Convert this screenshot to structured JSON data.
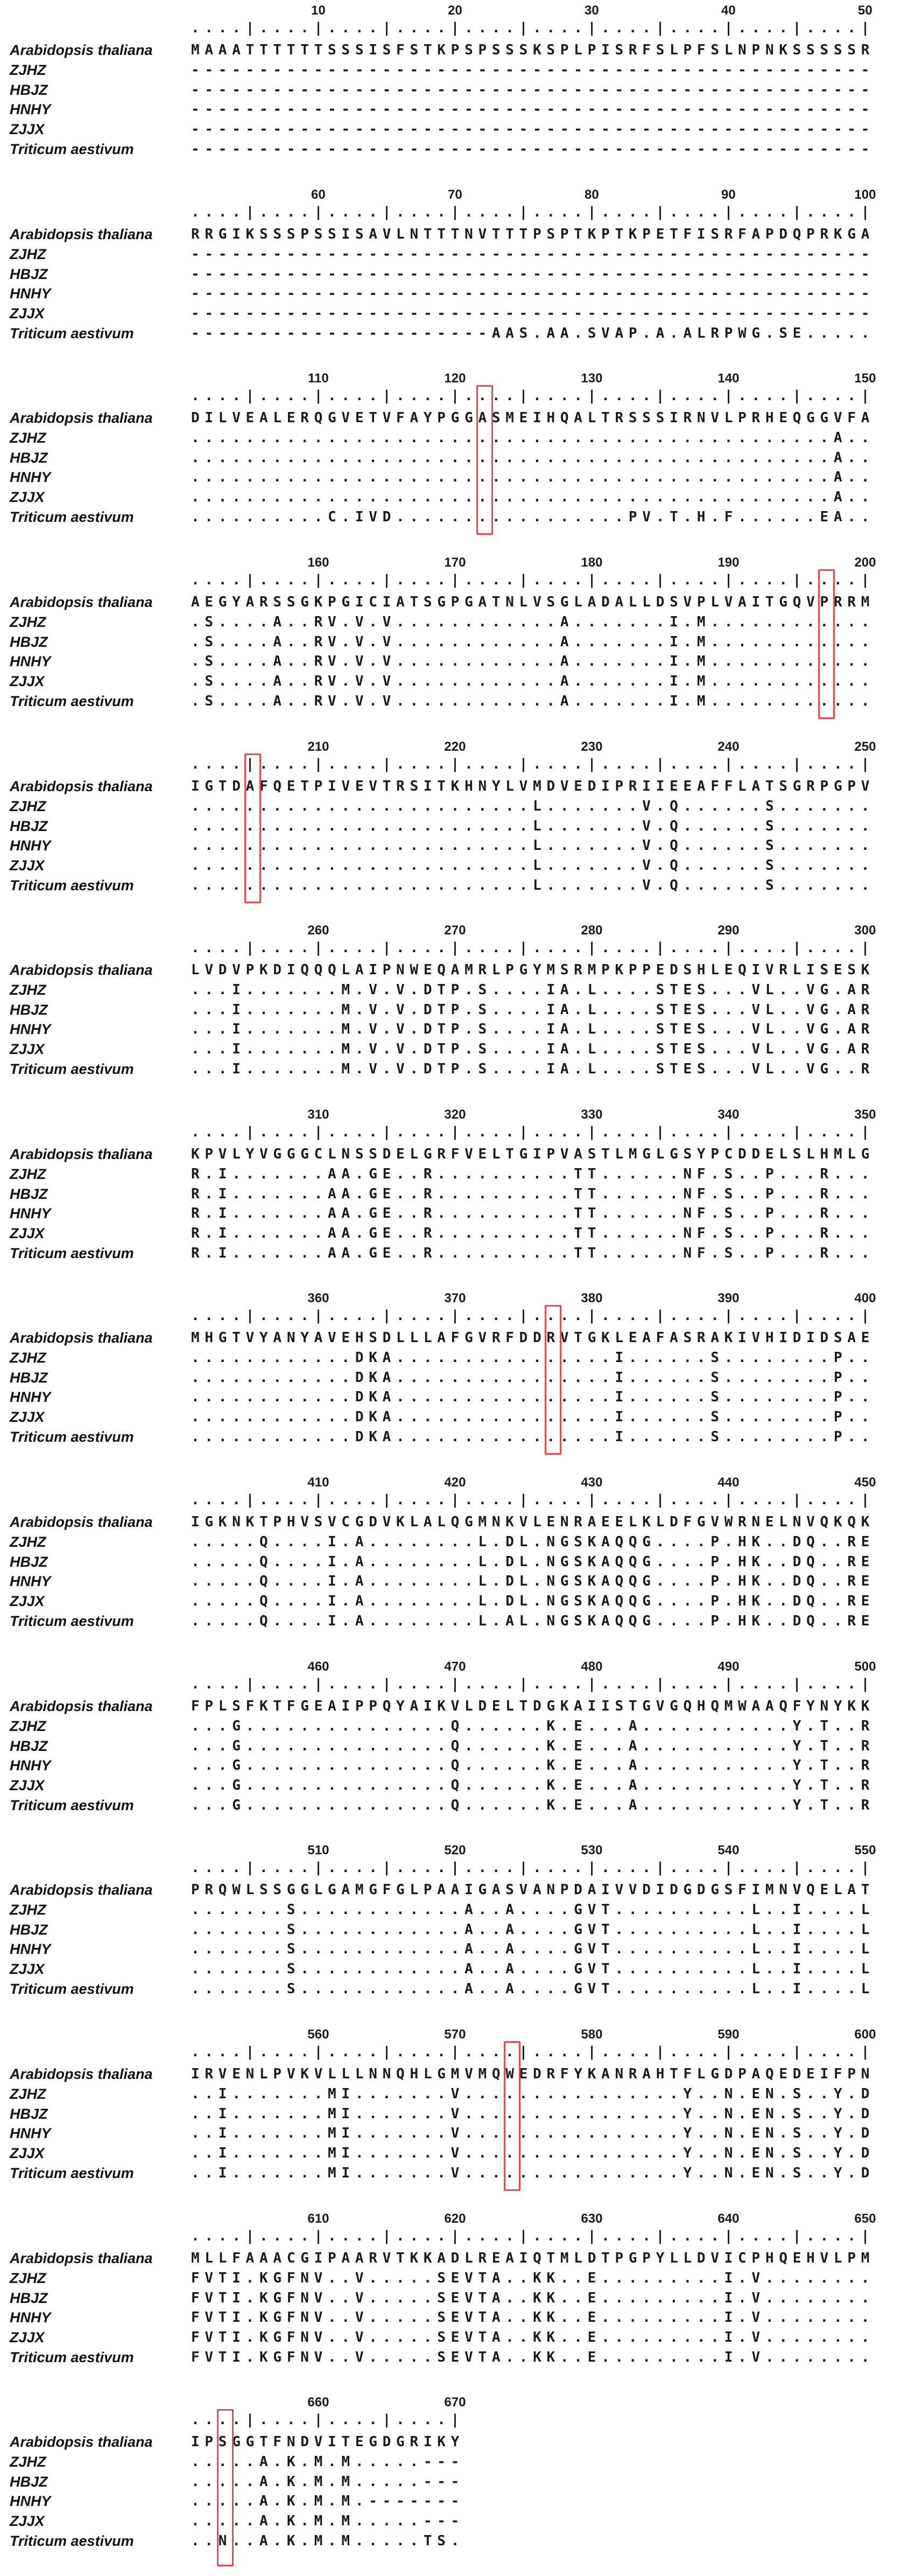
{
  "figure_title": "Multiple sequence alignment of deduced amino acid sequences",
  "colors": {
    "background": "#ffffff",
    "text": "#1a1a1a",
    "highlight_box": "#e9484e"
  },
  "chart_data": {
    "type": "table",
    "title": "Multiple sequence alignment (positions 1-670)",
    "legend_position": "left",
    "grid": false,
    "position_range": [
      1,
      670
    ],
    "highlighted_positions": [
      122,
      197,
      205,
      377,
      574,
      653
    ],
    "row_labels": [
      "Arabidopsis thaliana",
      "ZJHZ",
      "HBJZ",
      "HNHY",
      "ZJJX",
      "Triticum aestivum"
    ],
    "ruler_50": "....|....|....|....|....|....|....|....|....|....|",
    "ruler_20": "....|....|....|....|",
    "blocks": [
      {
        "start": 1,
        "cols": 50,
        "box_col": null,
        "ticks": [
          {
            "label": "10",
            "col": 10
          },
          {
            "label": "20",
            "col": 20
          },
          {
            "label": "30",
            "col": 30
          },
          {
            "label": "40",
            "col": 40
          },
          {
            "label": "50",
            "col": 50
          }
        ],
        "rows": [
          "MAAATTTTTTSSSISFSTKPSPSSSKSPLPISRFSLPFSLNPNKSSSSSR",
          "--------------------------------------------------",
          "--------------------------------------------------",
          "--------------------------------------------------",
          "--------------------------------------------------",
          "--------------------------------------------------"
        ]
      },
      {
        "start": 51,
        "cols": 50,
        "box_col": null,
        "ticks": [
          {
            "label": "60",
            "col": 10
          },
          {
            "label": "70",
            "col": 20
          },
          {
            "label": "80",
            "col": 30
          },
          {
            "label": "90",
            "col": 40
          },
          {
            "label": "100",
            "col": 50
          }
        ],
        "rows": [
          "RRGIKSSSPSSISAVLNTTTNVTTTPSPTKPTKPETFISRFAPDQPRKGA",
          "--------------------------------------------------",
          "--------------------------------------------------",
          "--------------------------------------------------",
          "--------------------------------------------------",
          "----------------------AAS.AA.SVAP.A.ALRPWG.SE....."
        ]
      },
      {
        "start": 101,
        "cols": 50,
        "box_col": 22,
        "ticks": [
          {
            "label": "110",
            "col": 10
          },
          {
            "label": "120",
            "col": 20
          },
          {
            "label": "130",
            "col": 30
          },
          {
            "label": "140",
            "col": 40
          },
          {
            "label": "150",
            "col": 50
          }
        ],
        "rows": [
          "DILVEALERQGVETVFAYPGGASMEIHQALTRSSSIRNVLPRHEQGGVFA",
          "...............................................A..",
          "...............................................A..",
          "...............................................A..",
          "...............................................A..",
          "..........C.IVD.................PV.T.H.F......EA.."
        ]
      },
      {
        "start": 151,
        "cols": 50,
        "box_col": 47,
        "ticks": [
          {
            "label": "160",
            "col": 10
          },
          {
            "label": "170",
            "col": 20
          },
          {
            "label": "180",
            "col": 30
          },
          {
            "label": "190",
            "col": 40
          },
          {
            "label": "200",
            "col": 50
          }
        ],
        "rows": [
          "AEGYARSSGKPGICIATSGPGATNLVSGLADALLDSVPLVAITGQVPRRM",
          ".S....A..RV.V.V............A.......I.M............",
          ".S....A..RV.V.V............A.......I.M............",
          ".S....A..RV.V.V............A.......I.M............",
          ".S....A..RV.V.V............A.......I.M............",
          ".S....A..RV.V.V............A.......I.M............"
        ]
      },
      {
        "start": 201,
        "cols": 50,
        "box_col": 5,
        "ticks": [
          {
            "label": "210",
            "col": 10
          },
          {
            "label": "220",
            "col": 20
          },
          {
            "label": "230",
            "col": 30
          },
          {
            "label": "240",
            "col": 40
          },
          {
            "label": "250",
            "col": 50
          }
        ],
        "rows": [
          "IGTDAFQETPIVEVTRSITKHNYLVMDVEDIPRIIEEAFFLATSGRPGPV",
          ".........................L.......V.Q......S.......",
          ".........................L.......V.Q......S.......",
          ".........................L.......V.Q......S.......",
          ".........................L.......V.Q......S.......",
          ".........................L.......V.Q......S......."
        ]
      },
      {
        "start": 251,
        "cols": 50,
        "box_col": null,
        "ticks": [
          {
            "label": "260",
            "col": 10
          },
          {
            "label": "270",
            "col": 20
          },
          {
            "label": "280",
            "col": 30
          },
          {
            "label": "290",
            "col": 40
          },
          {
            "label": "300",
            "col": 50
          }
        ],
        "rows": [
          "LVDVPKDIQQQLAIPNWEQAMRLPGYMSRMPKPPEDSHLEQIVRLISESK",
          "...I.......M.V.V.DTP.S....IA.L....STES...VL..VG.AR",
          "...I.......M.V.V.DTP.S....IA.L....STES...VL..VG.AR",
          "...I.......M.V.V.DTP.S....IA.L....STES...VL..VG.AR",
          "...I.......M.V.V.DTP.S....IA.L....STES...VL..VG.AR",
          "...I.......M.V.V.DTP.S....IA.L....STES...VL..VG..R"
        ]
      },
      {
        "start": 301,
        "cols": 50,
        "box_col": null,
        "ticks": [
          {
            "label": "310",
            "col": 10
          },
          {
            "label": "320",
            "col": 20
          },
          {
            "label": "330",
            "col": 30
          },
          {
            "label": "340",
            "col": 40
          },
          {
            "label": "350",
            "col": 50
          }
        ],
        "rows": [
          "KPVLYVGGGCLNSSDELGRFVELTGIPVASTLMGLGSYPCDDELSLHMLG",
          "R.I.......AA.GE..R..........TT......NF.S..P...R...",
          "R.I.......AA.GE..R..........TT......NF.S..P...R...",
          "R.I.......AA.GE..R..........TT......NF.S..P...R...",
          "R.I.......AA.GE..R..........TT......NF.S..P...R...",
          "R.I.......AA.GE..R..........TT......NF.S..P...R..."
        ]
      },
      {
        "start": 351,
        "cols": 50,
        "box_col": 27,
        "ticks": [
          {
            "label": "360",
            "col": 10
          },
          {
            "label": "370",
            "col": 20
          },
          {
            "label": "380",
            "col": 30
          },
          {
            "label": "390",
            "col": 40
          },
          {
            "label": "400",
            "col": 50
          }
        ],
        "rows": [
          "MHGTVYANYAVEHSDLLLAFGVRFDDRVTGKLEAFASRAKIVHIDIDSAE",
          "............DKA................I......S........P..",
          "............DKA................I......S........P..",
          "............DKA................I......S........P..",
          "............DKA................I......S........P..",
          "............DKA................I......S........P.."
        ]
      },
      {
        "start": 401,
        "cols": 50,
        "box_col": null,
        "ticks": [
          {
            "label": "410",
            "col": 10
          },
          {
            "label": "420",
            "col": 20
          },
          {
            "label": "430",
            "col": 30
          },
          {
            "label": "440",
            "col": 40
          },
          {
            "label": "450",
            "col": 50
          }
        ],
        "rows": [
          "IGKNKTPHVSVCGDVKLALQGMNKVLENRAEELKLDFGVWRNELNVQKQK",
          ".....Q....I.A........L.DL.NGSKAQQG....P.HK..DQ..RE",
          ".....Q....I.A........L.DL.NGSKAQQG....P.HK..DQ..RE",
          ".....Q....I.A........L.DL.NGSKAQQG....P.HK..DQ..RE",
          ".....Q....I.A........L.DL.NGSKAQQG....P.HK..DQ..RE",
          ".....Q....I.A........L.AL.NGSKAQQG....P.HK..DQ..RE"
        ]
      },
      {
        "start": 451,
        "cols": 50,
        "box_col": null,
        "ticks": [
          {
            "label": "460",
            "col": 10
          },
          {
            "label": "470",
            "col": 20
          },
          {
            "label": "480",
            "col": 30
          },
          {
            "label": "490",
            "col": 40
          },
          {
            "label": "500",
            "col": 50
          }
        ],
        "rows": [
          "FPLSFKTFGEAIPPQYAIKVLDELTDGKAIISTGVGQHQMWAAQFYNYKK",
          "...G...............Q......K.E...A...........Y.T..R",
          "...G...............Q......K.E...A...........Y.T..R",
          "...G...............Q......K.E...A...........Y.T..R",
          "...G...............Q......K.E...A...........Y.T..R",
          "...G...............Q......K.E...A...........Y.T..R"
        ]
      },
      {
        "start": 501,
        "cols": 50,
        "box_col": null,
        "ticks": [
          {
            "label": "510",
            "col": 10
          },
          {
            "label": "520",
            "col": 20
          },
          {
            "label": "530",
            "col": 30
          },
          {
            "label": "540",
            "col": 40
          },
          {
            "label": "550",
            "col": 50
          }
        ],
        "rows": [
          "PRQWLSSGGLGAMGFGLPAAIGASVANPDAIVVDIDGDGSFIMNVQELAT",
          ".......S............A..A....GVT..........L..I....L",
          ".......S............A..A....GVT..........L..I....L",
          ".......S............A..A....GVT..........L..I....L",
          ".......S............A..A....GVT..........L..I....L",
          ".......S............A..A....GVT..........L..I....L"
        ]
      },
      {
        "start": 551,
        "cols": 50,
        "box_col": 24,
        "ticks": [
          {
            "label": "560",
            "col": 10
          },
          {
            "label": "570",
            "col": 20
          },
          {
            "label": "580",
            "col": 30
          },
          {
            "label": "590",
            "col": 40
          },
          {
            "label": "600",
            "col": 50
          }
        ],
        "rows": [
          "IRVENLPVKVLLLNNQHLGMVMQWEDRFYKANRAHTFLGDPAQEDEIFPN",
          "..I.......MI.......V................Y..N.EN.S..Y.D",
          "..I.......MI.......V................Y..N.EN.S..Y.D",
          "..I.......MI.......V................Y..N.EN.S..Y.D",
          "..I.......MI.......V................Y..N.EN.S..Y.D",
          "..I.......MI.......V................Y..N.EN.S..Y.D"
        ]
      },
      {
        "start": 601,
        "cols": 50,
        "box_col": null,
        "ticks": [
          {
            "label": "610",
            "col": 10
          },
          {
            "label": "620",
            "col": 20
          },
          {
            "label": "630",
            "col": 30
          },
          {
            "label": "640",
            "col": 40
          },
          {
            "label": "650",
            "col": 50
          }
        ],
        "rows": [
          "MLLFAAACGIPAARVTKKADLREAIQTMLDTPGPYLLDVICPHQEHVLPM",
          "FVTI.KGFNV..V.....SEVTA..KK..E.........I.V........",
          "FVTI.KGFNV..V.....SEVTA..KK..E.........I.V........",
          "FVTI.KGFNV..V.....SEVTA..KK..E.........I.V........",
          "FVTI.KGFNV..V.....SEVTA..KK..E.........I.V........",
          "FVTI.KGFNV..V.....SEVTA..KK..E.........I.V........"
        ]
      },
      {
        "start": 651,
        "cols": 20,
        "box_col": 3,
        "ticks": [
          {
            "label": "660",
            "col": 10
          },
          {
            "label": "670",
            "col": 20
          }
        ],
        "rows": [
          "IPSGGTFNDVITEGDGRIKY",
          ".....A.K.M.M.....---",
          ".....A.K.M.M.....---",
          ".....A.K.M.M.-------",
          ".....A.K.M.M.....---",
          "..N..A.K.M.M.....TS."
        ]
      }
    ]
  }
}
